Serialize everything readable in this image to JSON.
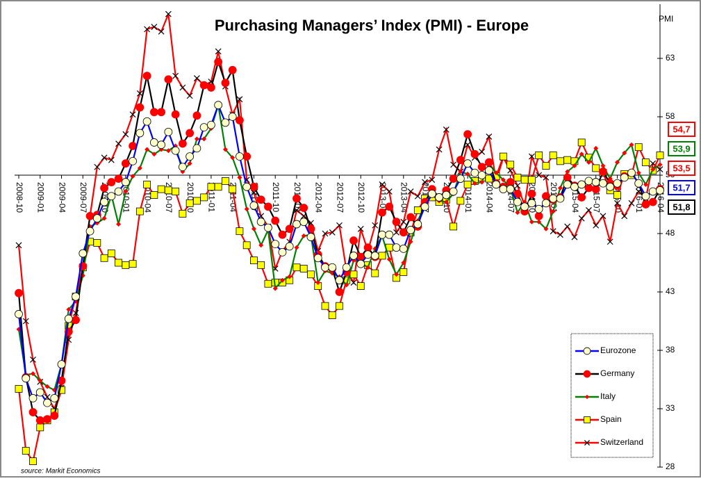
{
  "chart_data": {
    "type": "line",
    "title": "Purchasing Managers’ Index (PMI) - Europe",
    "y_label": "PMI",
    "source": "source:  Markit Economics",
    "categories": [
      "2008-10",
      null,
      null,
      "2009-01",
      null,
      null,
      "2009-04",
      null,
      null,
      "2009-07",
      null,
      null,
      "2009-10",
      null,
      null,
      "2010-01",
      null,
      null,
      "2010-04",
      null,
      null,
      "2010-07",
      null,
      null,
      "2010-10",
      null,
      null,
      "2011-01",
      null,
      null,
      "2011-04",
      null,
      null,
      "2011-07",
      null,
      null,
      "2011-10",
      null,
      null,
      "2012-01",
      null,
      null,
      "2012-04",
      null,
      null,
      "2012-07",
      null,
      null,
      "2012-10",
      null,
      null,
      "2013-01",
      null,
      null,
      "2013-04",
      null,
      null,
      "2013-07",
      null,
      null,
      "2013-10",
      null,
      null,
      "2014-01",
      null,
      null,
      "2014-04",
      null,
      null,
      "2014-07",
      null,
      null,
      "2014-10",
      null,
      null,
      "2015-01",
      null,
      null,
      "2015-04",
      null,
      null,
      "2015-07",
      null,
      null,
      "2015-10",
      null,
      null,
      "2016-01",
      null,
      null,
      "2016-04"
    ],
    "series": [
      {
        "name": "Eurozone",
        "color": "#0000ff",
        "marker": "circle",
        "marker_color": "#ffffcc",
        "last_label": "51,7",
        "values": [
          41.1,
          35.6,
          33.9,
          34.4,
          33.5,
          33.9,
          36.8,
          40.7,
          42.6,
          46.3,
          48.2,
          49.3,
          50.7,
          51.2,
          51.6,
          52.4,
          54.2,
          56.6,
          57.6,
          55.8,
          55.6,
          56.7,
          55.1,
          53.7,
          54.6,
          55.3,
          57.1,
          57.3,
          59.0,
          57.5,
          58.0,
          54.6,
          52.0,
          50.4,
          49.0,
          48.5,
          47.1,
          46.4,
          46.9,
          48.8,
          49.0,
          47.7,
          45.9,
          45.1,
          45.1,
          44.0,
          45.1,
          46.1,
          45.4,
          46.2,
          46.1,
          47.9,
          47.9,
          46.8,
          46.7,
          48.3,
          48.8,
          50.3,
          51.4,
          51.1,
          51.3,
          51.6,
          52.7,
          54.0,
          53.2,
          53.0,
          53.4,
          52.2,
          51.8,
          51.8,
          50.7,
          50.3,
          50.6,
          50.1,
          50.6,
          51.0,
          51.0,
          52.2,
          52.0,
          52.2,
          52.5,
          52.4,
          52.3,
          52.0,
          52.3,
          52.8,
          53.2,
          52.3,
          51.2,
          51.6,
          51.7
        ]
      },
      {
        "name": "Germany",
        "color": "#000000",
        "marker": "circle",
        "marker_color": "#ff0000",
        "last_label": "51,8",
        "values": [
          42.9,
          35.7,
          32.7,
          32.0,
          32.1,
          32.4,
          35.4,
          39.6,
          40.6,
          45.2,
          49.5,
          49.6,
          51.9,
          52.4,
          52.7,
          54.0,
          55.5,
          58.8,
          61.5,
          58.4,
          58.4,
          61.2,
          58.2,
          55.7,
          56.6,
          58.1,
          60.7,
          60.5,
          62.7,
          60.9,
          62.0,
          57.7,
          54.6,
          52.0,
          50.9,
          50.3,
          49.1,
          47.9,
          48.4,
          51.0,
          50.2,
          48.4,
          46.2,
          45.2,
          45.0,
          43.0,
          44.7,
          47.4,
          46.0,
          46.8,
          46.0,
          49.8,
          50.3,
          49.0,
          48.1,
          49.4,
          48.6,
          50.7,
          51.8,
          51.1,
          51.7,
          52.7,
          54.3,
          56.5,
          54.8,
          53.7,
          54.1,
          52.3,
          52.0,
          52.4,
          51.4,
          49.9,
          51.4,
          49.5,
          51.2,
          50.9,
          51.1,
          52.8,
          52.1,
          51.1,
          51.9,
          51.8,
          53.3,
          52.3,
          52.1,
          52.9,
          53.2,
          52.3,
          50.5,
          50.7,
          51.8
        ]
      },
      {
        "name": "Italy",
        "color": "#008000",
        "marker": "diamond",
        "marker_color": "#ff0000",
        "last_label": "53,9",
        "values": [
          39.8,
          35.9,
          36.0,
          35.4,
          34.9,
          34.6,
          36.8,
          41.5,
          42.2,
          44.4,
          48.6,
          48.9,
          49.3,
          51.3,
          48.8,
          51.6,
          52.9,
          53.6,
          55.2,
          54.8,
          55.2,
          55.1,
          55.5,
          53.3,
          54.0,
          56.1,
          56.1,
          57.0,
          59.0,
          55.2,
          54.5,
          52.8,
          50.1,
          48.4,
          47.0,
          48.3,
          43.3,
          44.0,
          44.3,
          46.8,
          47.8,
          47.9,
          43.8,
          44.8,
          44.6,
          44.3,
          43.6,
          45.7,
          45.5,
          45.1,
          46.7,
          47.8,
          45.8,
          44.5,
          45.5,
          47.3,
          49.1,
          50.4,
          51.3,
          50.8,
          50.7,
          51.4,
          53.3,
          53.1,
          52.3,
          52.4,
          54.0,
          53.2,
          52.6,
          51.9,
          49.8,
          50.7,
          49.0,
          49.0,
          48.4,
          49.9,
          51.9,
          53.3,
          53.8,
          54.8,
          54.1,
          55.3,
          53.8,
          52.7,
          54.1,
          54.9,
          55.6,
          53.2,
          52.2,
          53.5,
          53.9
        ]
      },
      {
        "name": "Spain",
        "color": "#ff0000",
        "marker": "square",
        "marker_color": "#ffff00",
        "last_label": "54,7",
        "values": [
          34.7,
          29.4,
          28.5,
          31.4,
          32.0,
          32.7,
          34.6,
          40.1,
          42.6,
          45.1,
          47.3,
          47.2,
          45.9,
          46.3,
          45.5,
          45.3,
          45.4,
          49.9,
          52.2,
          51.3,
          51.8,
          51.7,
          51.6,
          49.7,
          50.6,
          50.8,
          51.1,
          52.0,
          52.0,
          52.5,
          51.8,
          48.2,
          47.0,
          45.7,
          45.3,
          43.7,
          43.8,
          43.8,
          44.0,
          45.1,
          45.0,
          44.5,
          43.5,
          41.8,
          41.0,
          41.8,
          44.0,
          44.5,
          43.5,
          45.3,
          44.6,
          46.1,
          46.8,
          44.2,
          44.7,
          48.1,
          50.0,
          51.0,
          51.1,
          50.7,
          50.9,
          48.6,
          50.8,
          52.2,
          52.5,
          52.8,
          52.7,
          52.9,
          54.6,
          53.9,
          52.8,
          52.6,
          52.6,
          54.7,
          53.8,
          54.7,
          54.2,
          54.3,
          54.2,
          55.8,
          54.5,
          53.6,
          53.2,
          51.7,
          51.3,
          53.1,
          53.0,
          55.4,
          54.1,
          53.4,
          54.7
        ]
      },
      {
        "name": "Switzerland",
        "color": "#ff0000",
        "marker": "x",
        "marker_color": "#000000",
        "last_label": "53,5",
        "values": [
          47.0,
          40.5,
          37.2,
          35.3,
          34.0,
          33.0,
          34.8,
          38.9,
          41.2,
          45.2,
          49.5,
          53.7,
          54.5,
          54.3,
          55.7,
          56.5,
          58.2,
          60.0,
          65.5,
          65.7,
          65.3,
          66.8,
          61.5,
          60.5,
          59.8,
          61.3,
          60.7,
          61.0,
          63.6,
          60.6,
          58.2,
          59.5,
          52.6,
          51.5,
          49.5,
          48.6,
          45.0,
          46.5,
          47.3,
          50.0,
          49.5,
          48.9,
          46.5,
          48.0,
          48.1,
          48.7,
          44.8,
          43.8,
          48.4,
          46.5,
          48.7,
          52.2,
          51.6,
          48.1,
          49.0,
          51.6,
          51.2,
          52.4,
          52.6,
          55.2,
          56.9,
          53.9,
          53.3,
          55.6,
          54.5,
          55.0,
          56.3,
          52.5,
          54.5,
          53.4,
          52.1,
          50.4,
          54.6,
          53.0,
          52.8,
          48.2,
          47.9,
          48.6,
          47.7,
          49.3,
          50.0,
          48.7,
          49.5,
          47.3,
          50.6,
          49.5,
          50.6,
          51.6,
          51.0,
          54.0,
          53.5
        ]
      }
    ],
    "ylim": [
      28,
      68
    ],
    "yticks": [
      28,
      33,
      38,
      43,
      48,
      53,
      58,
      63
    ],
    "x_axis_crosses": 53,
    "grid": false,
    "legend": "lower right"
  }
}
